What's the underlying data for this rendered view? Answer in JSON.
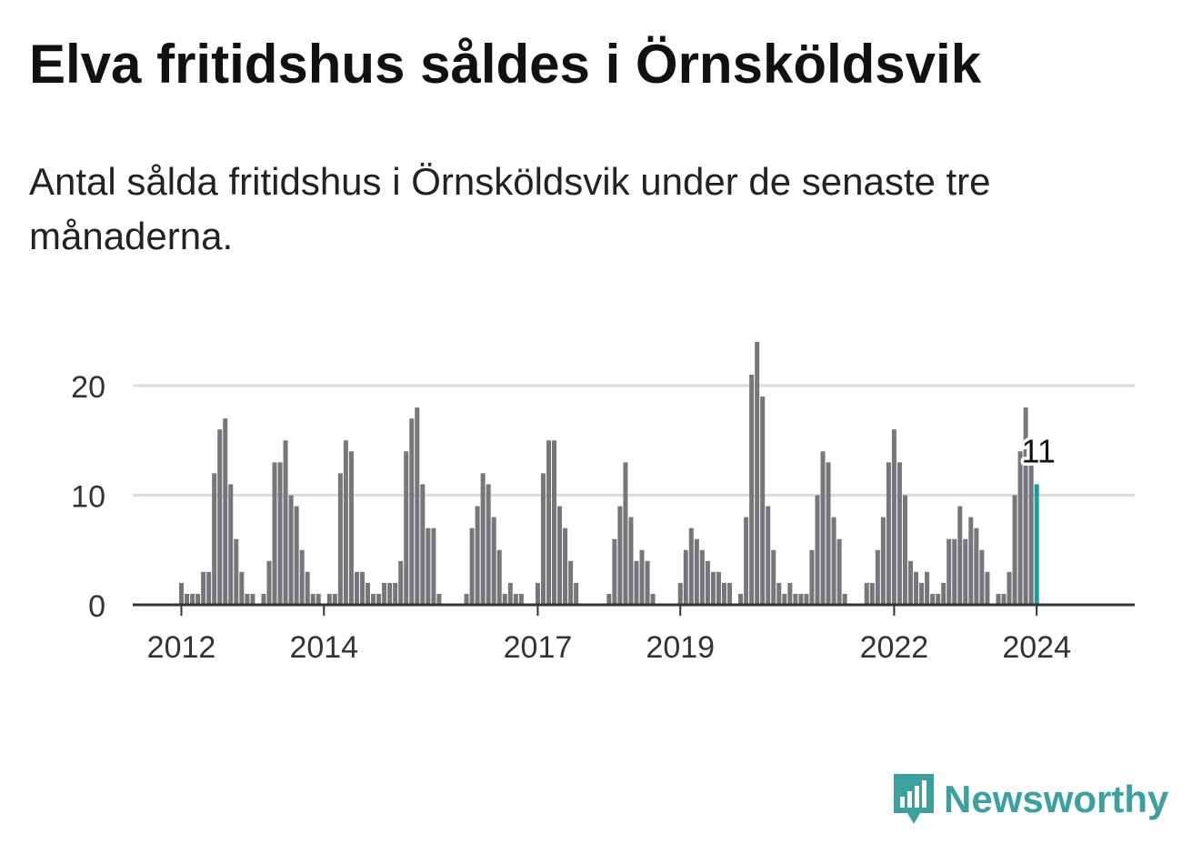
{
  "title": "Elva fritidshus såldes i Örnsköldsvik",
  "subtitle": "Antal sålda fritidshus i Örnsköldsvik under de senaste tre månaderna.",
  "brand": {
    "name": "Newsworthy",
    "icon": "newsworthy-bar-chart-icon",
    "color": "#3aa1a0"
  },
  "chart_data": {
    "type": "bar",
    "series": [
      {
        "values": [
          2,
          1,
          1,
          1,
          3,
          3,
          12,
          16,
          17,
          11,
          6,
          3,
          1,
          1,
          0,
          1,
          4,
          13,
          13,
          15,
          10,
          9,
          5,
          3,
          1,
          1,
          0,
          1,
          1,
          12,
          15,
          14,
          3,
          3,
          2,
          1,
          1,
          2,
          2,
          2,
          4,
          14,
          17,
          18,
          11,
          7,
          7,
          1,
          0,
          0,
          0,
          0,
          1,
          7,
          9,
          12,
          11,
          8,
          5,
          1,
          2,
          1,
          1,
          0,
          0,
          2,
          12,
          15,
          15,
          9,
          7,
          4,
          2,
          0,
          0,
          0,
          0,
          0,
          1,
          6,
          9,
          13,
          8,
          4,
          5,
          4,
          1,
          0,
          0,
          0,
          0,
          2,
          5,
          7,
          6,
          5,
          4,
          3,
          3,
          2,
          2,
          0,
          1,
          8,
          21,
          24,
          19,
          9,
          5,
          2,
          1,
          2,
          1,
          1,
          1,
          5,
          10,
          14,
          13,
          8,
          6,
          1,
          0,
          0,
          0,
          2,
          2,
          5,
          8,
          13,
          16,
          13,
          10,
          4,
          3,
          2,
          3,
          1,
          1,
          2,
          6,
          6,
          9,
          6,
          8,
          7,
          5,
          3,
          0,
          1,
          1,
          3,
          10,
          14,
          18,
          13,
          11
        ]
      }
    ],
    "highlight": {
      "value": 11,
      "label": "11",
      "color": "#1a9e9c"
    },
    "bar_color": "#77767b",
    "x_ticks": [
      {
        "label": "2012",
        "index": 0
      },
      {
        "label": "2014",
        "index": 26
      },
      {
        "label": "2017",
        "index": 65
      },
      {
        "label": "2019",
        "index": 91
      },
      {
        "label": "2022",
        "index": 130
      },
      {
        "label": "2024",
        "index": 156
      }
    ],
    "y_ticks": [
      0,
      10,
      20
    ],
    "ylim": [
      0,
      25
    ],
    "grid": true,
    "xlabel": "",
    "ylabel": ""
  }
}
